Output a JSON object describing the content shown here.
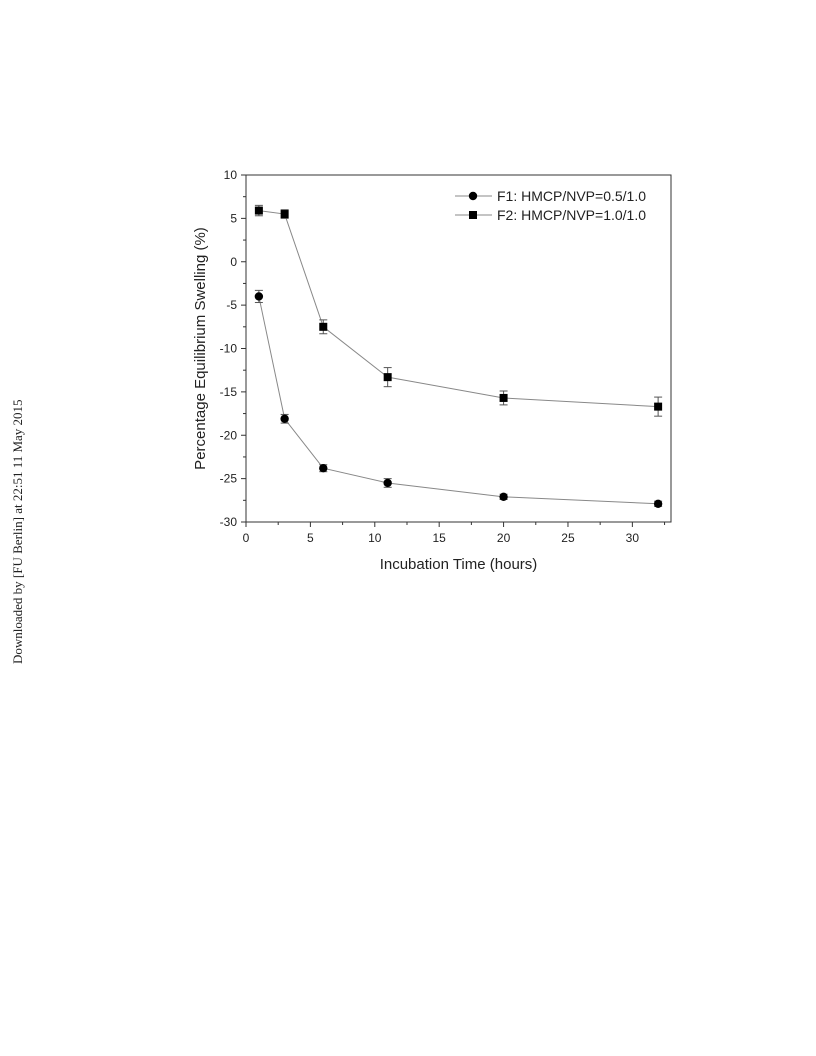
{
  "watermark": "Downloaded by [FU Berlin] at 22:51 11 May 2015",
  "chart_data": {
    "type": "line",
    "title": "",
    "xlabel": "Incubation Time (hours)",
    "ylabel": "Percentage Equilibrium Swelling (%)",
    "xlim": [
      0,
      33
    ],
    "ylim": [
      -30,
      10
    ],
    "xticks": [
      0,
      5,
      10,
      15,
      20,
      25,
      30
    ],
    "yticks": [
      -30,
      -25,
      -20,
      -15,
      -10,
      -5,
      0,
      5,
      10
    ],
    "grid": false,
    "legend_position": "top-right",
    "series": [
      {
        "name": "F1: HMCP/NVP=0.5/1.0",
        "marker": "circle",
        "x": [
          1,
          3,
          6,
          11,
          20,
          32
        ],
        "y": [
          -4.0,
          -18.1,
          -23.8,
          -25.5,
          -27.1,
          -27.9
        ],
        "error": [
          0.7,
          0.5,
          0.4,
          0.5,
          0.3,
          0.3
        ]
      },
      {
        "name": "F2: HMCP/NVP=1.0/1.0",
        "marker": "square",
        "x": [
          1,
          3,
          6,
          11,
          20,
          32
        ],
        "y": [
          5.9,
          5.5,
          -7.5,
          -13.3,
          -15.7,
          -16.7
        ],
        "error": [
          0.6,
          0.5,
          0.8,
          1.1,
          0.8,
          1.1
        ]
      }
    ],
    "colors": {
      "line": "#888888",
      "marker": "#000000",
      "axis": "#333333"
    }
  }
}
